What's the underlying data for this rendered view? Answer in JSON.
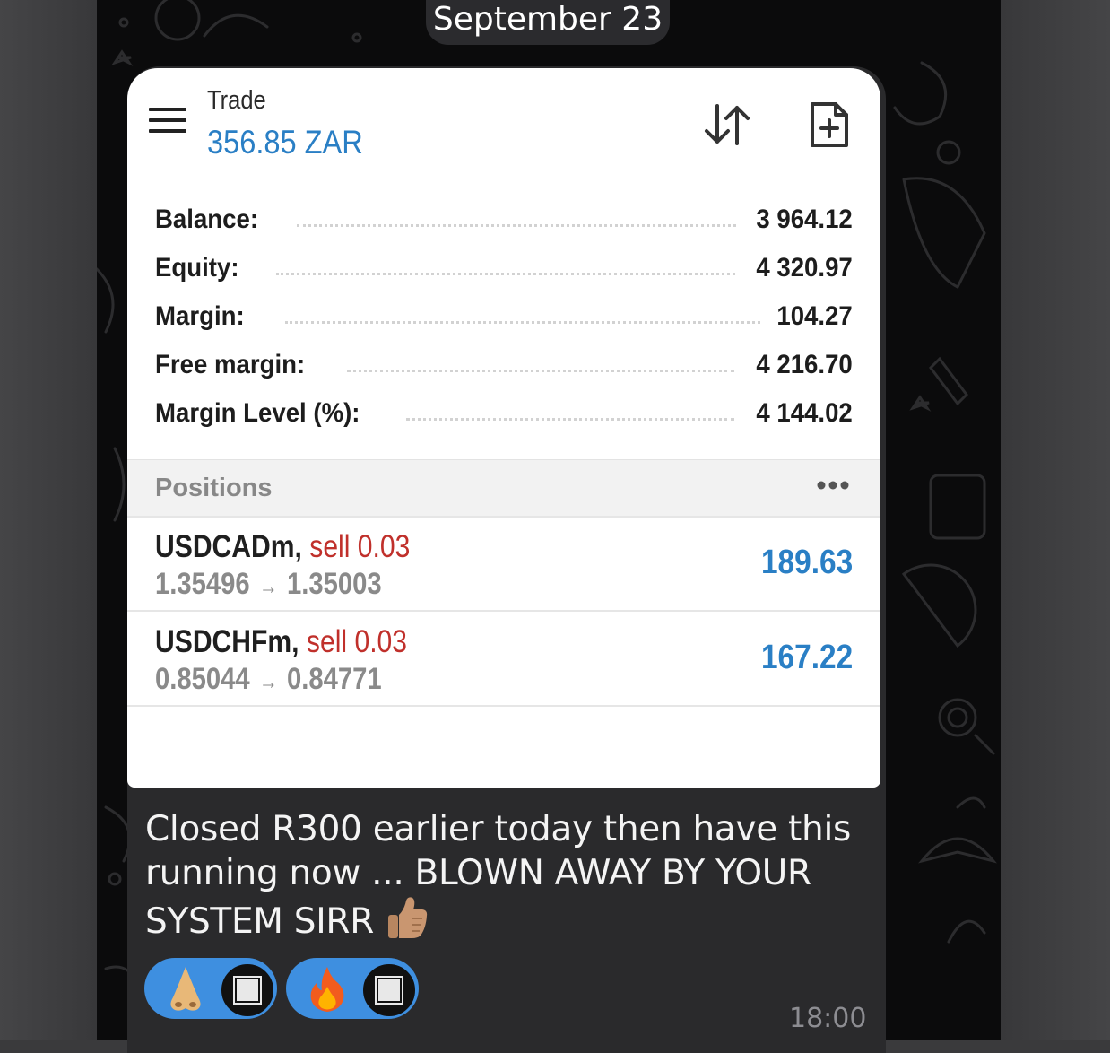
{
  "date_header": "September 23",
  "trade_header": {
    "title": "Trade",
    "balance": "356.85 ZAR"
  },
  "account": [
    {
      "label": "Balance:",
      "value": "3 964.12"
    },
    {
      "label": "Equity:",
      "value": "4 320.97"
    },
    {
      "label": "Margin:",
      "value": "104.27"
    },
    {
      "label": "Free margin:",
      "value": "4 216.70"
    },
    {
      "label": "Margin Level (%):",
      "value": "4 144.02"
    }
  ],
  "positions_section": {
    "title": "Positions",
    "items": [
      {
        "symbol": "USDCADm,",
        "side": "sell 0.03",
        "open_price": "1.35496",
        "current_price": "1.35003",
        "profit": "189.63"
      },
      {
        "symbol": "USDCHFm,",
        "side": "sell 0.03",
        "open_price": "0.85044",
        "current_price": "0.84771",
        "profit": "167.22"
      }
    ]
  },
  "message": {
    "text": "Closed R300 earlier today then have this running now ... BLOWN AWAY BY YOUR SYSTEM SIRR",
    "time": "18:00"
  },
  "reactions": [
    {
      "emoji": "nose-emoji"
    },
    {
      "emoji": "fire-emoji"
    }
  ],
  "colors": {
    "accent_blue": "#2a7fc5",
    "sell_red": "#c0302b",
    "reaction_blue": "#3e8fe0",
    "bubble": "#2a2a2c"
  }
}
